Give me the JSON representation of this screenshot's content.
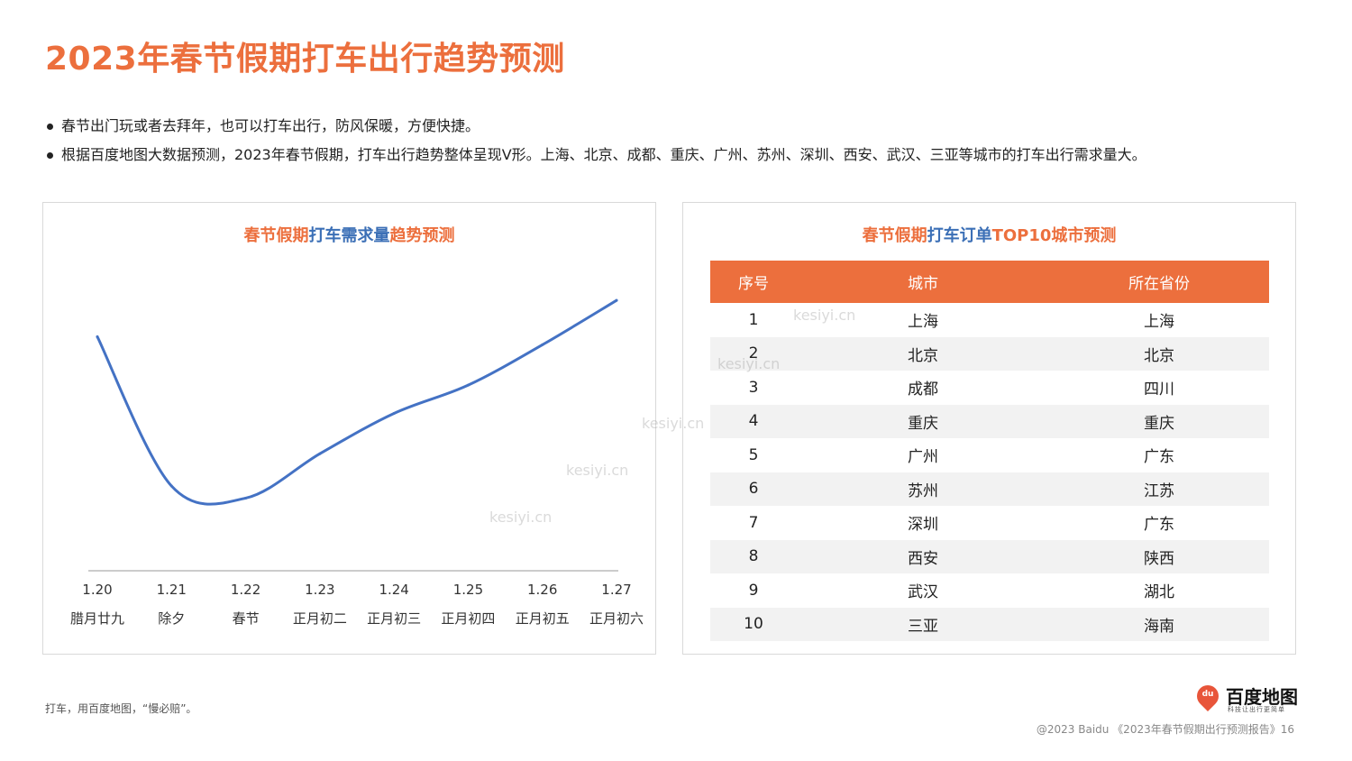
{
  "title": "2023年春节假期打车出行趋势预测",
  "bullets": [
    "春节出门玩或者去拜年，也可以打车出行，防风保暖，方便快捷。",
    "根据百度地图大数据预测，2023年春节假期，打车出行趋势整体呈现V形。上海、北京、成都、重庆、广州、苏州、深圳、西安、武汉、三亚等城市的打车出行需求量大。"
  ],
  "left_panel": {
    "title_parts": [
      "春节假期",
      "打车需求量",
      "趋势预测"
    ]
  },
  "chart_data": {
    "type": "line",
    "title": "春节假期打车需求量趋势预测",
    "x": [
      "1.20",
      "1.21",
      "1.22",
      "1.23",
      "1.24",
      "1.25",
      "1.26",
      "1.27"
    ],
    "x_sub": [
      "腊月廿九",
      "除夕",
      "春节",
      "正月初二",
      "正月初三",
      "正月初四",
      "正月初五",
      "正月初六"
    ],
    "series": [
      {
        "values": [
          58,
          21,
          18,
          29,
          39,
          46,
          56,
          67
        ]
      }
    ],
    "ylim": [
      0,
      80
    ],
    "grid": false,
    "line_color": "#4472c4"
  },
  "right_panel": {
    "title_parts": [
      "春节假期",
      "打车订单",
      "TOP10城市预测"
    ],
    "headers": [
      "序号",
      "城市",
      "所在省份"
    ],
    "rows": [
      [
        "1",
        "上海",
        "上海"
      ],
      [
        "2",
        "北京",
        "北京"
      ],
      [
        "3",
        "成都",
        "四川"
      ],
      [
        "4",
        "重庆",
        "重庆"
      ],
      [
        "5",
        "广州",
        "广东"
      ],
      [
        "6",
        "苏州",
        "江苏"
      ],
      [
        "7",
        "深圳",
        "广东"
      ],
      [
        "8",
        "西安",
        "陕西"
      ],
      [
        "9",
        "武汉",
        "湖北"
      ],
      [
        "10",
        "三亚",
        "海南"
      ]
    ]
  },
  "footer": {
    "note": "打车，用百度地图，“慢必赔”。",
    "copyright": "@2023 Baidu 《2023年春节假期出行预测报告》16"
  },
  "logo": {
    "pin": "du",
    "name": "百度地图",
    "slogan": "科技让出行更简单"
  },
  "watermark": "kesiyi.cn",
  "colors": {
    "accent": "#ec6f3d",
    "blue": "#3b6fb6",
    "row_alt": "#f2f2f2"
  }
}
